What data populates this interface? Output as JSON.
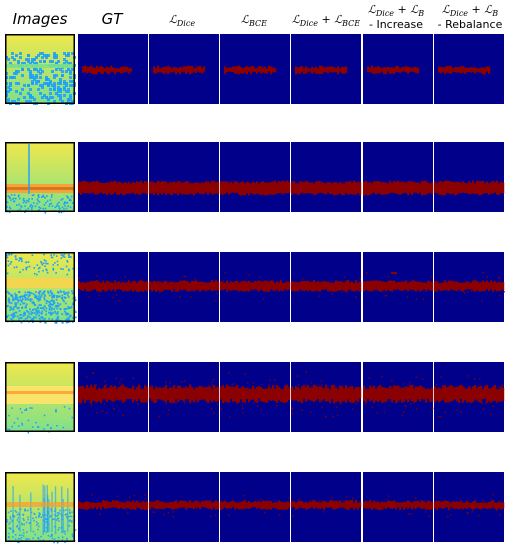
{
  "headers": {
    "images": "Images",
    "gt": "GT",
    "dice": {
      "sym": "ℒ",
      "sub": "Dice"
    },
    "bce": {
      "sym": "ℒ",
      "sub": "BCE"
    },
    "dice_bce": {
      "a": "ℒ",
      "asub": "Dice",
      "op": " + ",
      "b": "ℒ",
      "bsub": "BCE"
    },
    "dice_b_increase": {
      "a": "ℒ",
      "asub": "Dice",
      "op": " + ",
      "b": "ℒ",
      "bsub": "B",
      "suffix": "- Increase"
    },
    "dice_b_rebalance": {
      "a": "ℒ",
      "asub": "Dice",
      "op": " + ",
      "b": "ℒ",
      "bsub": "B",
      "suffix": "- Rebalance"
    }
  },
  "colors": {
    "background": "#00008b",
    "mask": "#8b0000",
    "image_base": "#f0e84a",
    "image_green": "#7fe08a",
    "image_cyan": "#1aa0ff",
    "image_border": "#000000"
  },
  "rows": [
    {
      "id": "row-1",
      "image_style": "noise-top"
    },
    {
      "id": "row-2",
      "image_style": "fiber"
    },
    {
      "id": "row-3",
      "image_style": "noise-bottom"
    },
    {
      "id": "row-4",
      "image_style": "smooth"
    },
    {
      "id": "row-5",
      "image_style": "streaks"
    }
  ]
}
